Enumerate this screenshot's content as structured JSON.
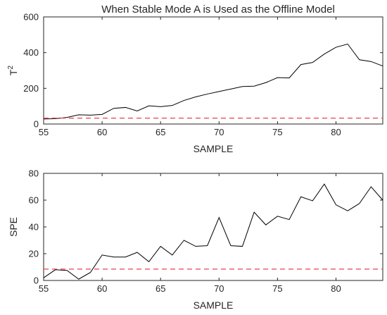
{
  "chart_data": [
    {
      "type": "line",
      "title": "When Stable Mode A is Used as the Offline Model",
      "xlabel": "SAMPLE",
      "ylabel": "T",
      "ylabel_superscript": "2",
      "xlim": [
        55,
        84
      ],
      "ylim": [
        0,
        600
      ],
      "xticks": [
        55,
        60,
        65,
        70,
        75,
        80
      ],
      "yticks": [
        0,
        200,
        400,
        600
      ],
      "grid": false,
      "series": [
        {
          "color": "#000000",
          "style": "solid",
          "x": [
            55,
            56,
            57,
            58,
            59,
            60,
            61,
            62,
            63,
            64,
            65,
            66,
            67,
            68,
            69,
            70,
            71,
            72,
            73,
            74,
            75,
            76,
            77,
            78,
            79,
            80,
            81,
            82,
            83,
            84
          ],
          "values": [
            28,
            30,
            37,
            52,
            50,
            54,
            88,
            93,
            73,
            102,
            97,
            104,
            132,
            152,
            168,
            182,
            196,
            210,
            212,
            232,
            260,
            258,
            333,
            345,
            392,
            430,
            448,
            360,
            350,
            325
          ]
        },
        {
          "color": "#e8414e",
          "style": "dashed",
          "x": [
            55,
            84
          ],
          "values": [
            33,
            33
          ]
        }
      ]
    },
    {
      "type": "line",
      "title": "",
      "xlabel": "SAMPLE",
      "ylabel": "SPE",
      "xlim": [
        55,
        84
      ],
      "ylim": [
        0,
        80
      ],
      "xticks": [
        55,
        60,
        65,
        70,
        75,
        80
      ],
      "yticks": [
        0,
        20,
        40,
        60,
        80
      ],
      "grid": false,
      "series": [
        {
          "color": "#000000",
          "style": "solid",
          "x": [
            55,
            56,
            57,
            58,
            59,
            60,
            61,
            62,
            63,
            64,
            65,
            66,
            67,
            68,
            69,
            70,
            71,
            72,
            73,
            74,
            75,
            76,
            77,
            78,
            79,
            80,
            81,
            82,
            83,
            84
          ],
          "values": [
            2,
            8,
            7.5,
            1,
            6,
            19,
            17.5,
            17.5,
            21,
            14,
            25.5,
            19,
            30,
            25.5,
            26,
            47,
            26,
            25.5,
            51,
            41.5,
            48,
            45.5,
            62.5,
            59.5,
            72,
            56.5,
            52,
            57.5,
            70,
            60
          ]
        },
        {
          "color": "#e8414e",
          "style": "dashed",
          "x": [
            55,
            84
          ],
          "values": [
            8.5,
            8.5
          ]
        }
      ]
    }
  ]
}
